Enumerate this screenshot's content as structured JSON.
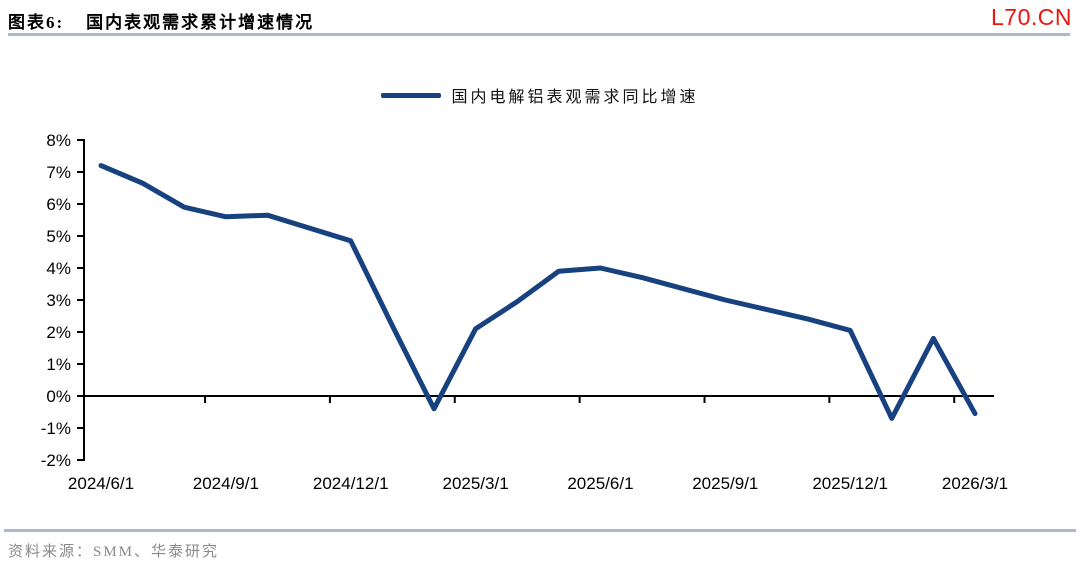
{
  "header": {
    "figure_label": "图表6:",
    "title": "国内表观需求累计增速情况",
    "watermark": "L70.CN"
  },
  "colors": {
    "series_line": "#17417F",
    "watermark_red": "#EE1510",
    "divider_blue": "#A9B9D0",
    "axis_black": "#000000",
    "source_gray": "#8A8A8A"
  },
  "legend": {
    "label": "国内电解铝表观需求同比增速"
  },
  "chart_data": {
    "type": "line",
    "title": "国内表观需求累计增速情况",
    "y_unit": "%",
    "grid": false,
    "legend_position": "top-center",
    "ylim": [
      -2,
      8
    ],
    "x": [
      "2024/6/1",
      "2024/7/1",
      "2024/8/1",
      "2024/9/1",
      "2024/10/1",
      "2024/11/1",
      "2024/12/1",
      "2025/1/1",
      "2025/2/1",
      "2025/3/1",
      "2025/4/1",
      "2025/5/1",
      "2025/6/1",
      "2025/7/1",
      "2025/8/1",
      "2025/9/1",
      "2025/10/1",
      "2025/11/1",
      "2025/12/1",
      "2026/1/1",
      "2026/2/1",
      "2026/3/1"
    ],
    "series": [
      {
        "name": "国内电解铝表观需求同比增速",
        "values": [
          7.2,
          6.65,
          5.9,
          5.6,
          5.65,
          5.25,
          4.85,
          2.2,
          -0.4,
          2.1,
          2.95,
          3.9,
          4.0,
          3.7,
          3.35,
          3.0,
          2.7,
          2.4,
          2.05,
          -0.7,
          1.8,
          -0.55
        ]
      }
    ],
    "x_tick_labels": [
      "2024/6/1",
      "2024/9/1",
      "2024/12/1",
      "2025/3/1",
      "2025/6/1",
      "2025/9/1",
      "2025/12/1",
      "2026/3/1"
    ],
    "y_tick_labels": [
      "8%",
      "7%",
      "6%",
      "5%",
      "4%",
      "3%",
      "2%",
      "1%",
      "0%",
      "-1%",
      "-2%"
    ]
  },
  "footer": {
    "source": "资料来源：SMM、华泰研究"
  }
}
